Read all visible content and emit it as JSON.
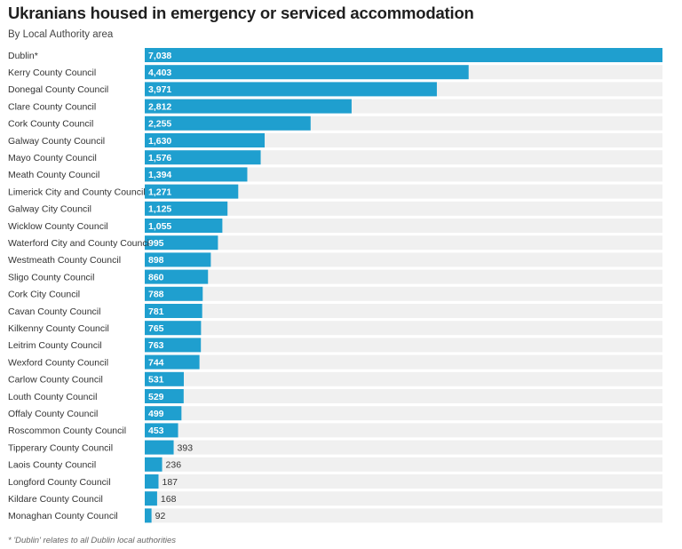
{
  "header": {
    "title": "Ukranians housed in emergency or serviced accommodation",
    "subtitle": "By Local Authority area"
  },
  "footnote": "* 'Dublin' relates to all Dublin local authorities",
  "colors": {
    "bar": "#1f9fcf",
    "track": "#f0f0f0"
  },
  "chart_data": {
    "type": "bar",
    "orientation": "horizontal",
    "categories": [
      "Dublin*",
      "Kerry County Council",
      "Donegal County Council",
      "Clare County Council",
      "Cork County Council",
      "Galway County Council",
      "Mayo County Council",
      "Meath County Council",
      "Limerick City and County Council",
      "Galway City Council",
      "Wicklow County Council",
      "Waterford City and County Council",
      "Westmeath County Council",
      "Sligo County Council",
      "Cork City Council",
      "Cavan County Council",
      "Kilkenny County Council",
      "Leitrim County Council",
      "Wexford County Council",
      "Carlow County Council",
      "Louth County Council",
      "Offaly County Council",
      "Roscommon County Council",
      "Tipperary County Council",
      "Laois County Council",
      "Longford County Council",
      "Kildare County Council",
      "Monaghan County Council"
    ],
    "values": [
      7038,
      4403,
      3971,
      2812,
      2255,
      1630,
      1576,
      1394,
      1271,
      1125,
      1055,
      995,
      898,
      860,
      788,
      781,
      765,
      763,
      744,
      531,
      529,
      499,
      453,
      393,
      236,
      187,
      168,
      92
    ],
    "value_labels": [
      "7,038",
      "4,403",
      "3,971",
      "2,812",
      "2,255",
      "1,630",
      "1,576",
      "1,394",
      "1,271",
      "1,125",
      "1,055",
      "995",
      "898",
      "860",
      "788",
      "781",
      "765",
      "763",
      "744",
      "531",
      "529",
      "499",
      "453",
      "393",
      "236",
      "187",
      "168",
      "92"
    ],
    "xlim": [
      0,
      7038
    ],
    "grid": false,
    "legend": "none"
  }
}
